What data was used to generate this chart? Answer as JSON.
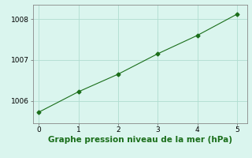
{
  "x": [
    0,
    1,
    2,
    3,
    4,
    5
  ],
  "y": [
    1005.72,
    1006.22,
    1006.65,
    1007.15,
    1007.6,
    1008.12
  ],
  "line_color": "#1a6e1a",
  "marker": "D",
  "marker_size": 2.5,
  "line_width": 0.8,
  "linestyle": "-",
  "xlabel": "Graphe pression niveau de la mer (hPa)",
  "xlim": [
    -0.15,
    5.25
  ],
  "ylim": [
    1005.45,
    1008.35
  ],
  "yticks": [
    1006,
    1007,
    1008
  ],
  "xticks": [
    0,
    1,
    2,
    3,
    4,
    5
  ],
  "grid_color": "#b0ddd0",
  "bg_color": "#daf5ee",
  "label_fontsize": 7.5,
  "tick_fontsize": 6.5
}
